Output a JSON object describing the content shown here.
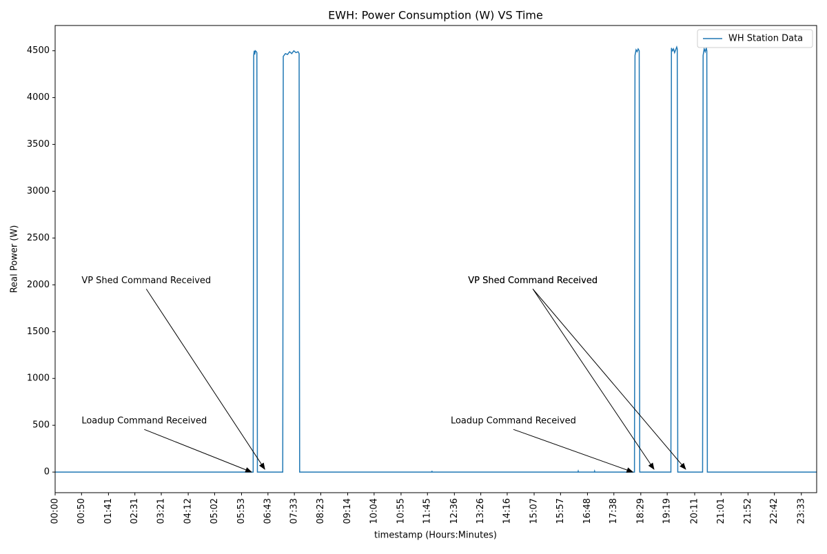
{
  "chart_data": {
    "type": "line",
    "title": "EWH: Power Consumption (W) VS Time",
    "x_label": "timestamp (Hours:Minutes)",
    "y_label": "Real Power (W)",
    "x": [
      0,
      375,
      376,
      377,
      378,
      379,
      381,
      382,
      383,
      431,
      432,
      436,
      440,
      444,
      448,
      452,
      456,
      460,
      462,
      463,
      713,
      713.5,
      714,
      990,
      990.5,
      991,
      1021,
      1021.5,
      1022,
      1097,
      1098,
      1100,
      1102,
      1104,
      1106,
      1107,
      1166,
      1167,
      1169,
      1171,
      1173,
      1175,
      1177,
      1178,
      1179,
      1226,
      1227,
      1229,
      1231,
      1233,
      1234,
      1235,
      1442
    ],
    "series": [
      {
        "name": "WH Station Data",
        "color": "#1f77b4",
        "values": [
          0,
          0,
          4450,
          4500,
          4460,
          4500,
          4490,
          4480,
          0,
          0,
          4440,
          4470,
          4460,
          4490,
          4470,
          4500,
          4480,
          4490,
          4470,
          0,
          0,
          12,
          0,
          0,
          10,
          0,
          0,
          10,
          0,
          0,
          4450,
          4510,
          4490,
          4520,
          4500,
          0,
          0,
          4530,
          4500,
          4520,
          4480,
          4510,
          4540,
          4520,
          0,
          0,
          4450,
          4520,
          4490,
          4530,
          4500,
          0,
          0
        ]
      }
    ],
    "xlim": [
      0,
      1442
    ],
    "ylim": [
      -220,
      4770
    ],
    "xticks": [
      {
        "value": 0,
        "label": "00:00"
      },
      {
        "value": 50,
        "label": "00:50"
      },
      {
        "value": 101,
        "label": "01:41"
      },
      {
        "value": 151,
        "label": "02:31"
      },
      {
        "value": 201,
        "label": "03:21"
      },
      {
        "value": 252,
        "label": "04:12"
      },
      {
        "value": 302,
        "label": "05:02"
      },
      {
        "value": 353,
        "label": "05:53"
      },
      {
        "value": 403,
        "label": "06:43"
      },
      {
        "value": 453,
        "label": "07:33"
      },
      {
        "value": 503,
        "label": "08:23"
      },
      {
        "value": 554,
        "label": "09:14"
      },
      {
        "value": 604,
        "label": "10:04"
      },
      {
        "value": 655,
        "label": "10:55"
      },
      {
        "value": 705,
        "label": "11:45"
      },
      {
        "value": 756,
        "label": "12:36"
      },
      {
        "value": 806,
        "label": "13:26"
      },
      {
        "value": 856,
        "label": "14:16"
      },
      {
        "value": 907,
        "label": "15:07"
      },
      {
        "value": 957,
        "label": "15:57"
      },
      {
        "value": 1008,
        "label": "16:48"
      },
      {
        "value": 1058,
        "label": "17:38"
      },
      {
        "value": 1109,
        "label": "18:29"
      },
      {
        "value": 1159,
        "label": "19:19"
      },
      {
        "value": 1211,
        "label": "20:11"
      },
      {
        "value": 1261,
        "label": "21:01"
      },
      {
        "value": 1312,
        "label": "21:52"
      },
      {
        "value": 1362,
        "label": "22:42"
      },
      {
        "value": 1413,
        "label": "23:33"
      }
    ],
    "yticks": [
      0,
      500,
      1000,
      1500,
      2000,
      2500,
      3000,
      3500,
      4000,
      4500
    ],
    "legend": "upper right",
    "annotations": [
      {
        "text": "VP Shed Command Received",
        "x": 50,
        "y": 2000,
        "target": [
          397,
          30
        ]
      },
      {
        "text": "Loadup Command Received",
        "x": 50,
        "y": 500,
        "target": [
          372,
          0
        ]
      },
      {
        "text": "Loadup Command Received",
        "x": 749,
        "y": 500,
        "target": [
          1094,
          0
        ]
      },
      {
        "text": "VP Shed Command Received",
        "x": 782,
        "y": 2000,
        "target": [
          1134,
          30
        ]
      },
      {
        "text": "VP Shed Command Received",
        "x": 782,
        "y": 2000,
        "target": [
          1194,
          30
        ]
      }
    ]
  }
}
